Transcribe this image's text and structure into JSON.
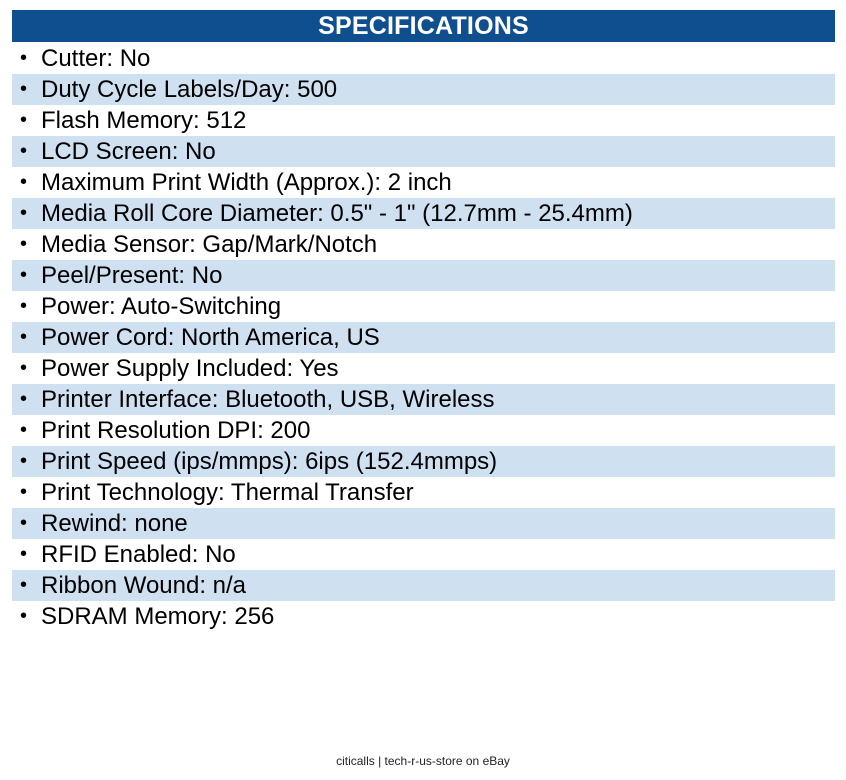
{
  "header": {
    "title": "SPECIFICATIONS"
  },
  "colors": {
    "header_bg": "#0f4f90",
    "header_text": "#ffffff",
    "row_shade": "#cfe0f1"
  },
  "bullet_icon": "•",
  "specs": [
    {
      "label": "Cutter: No"
    },
    {
      "label": "Duty Cycle Labels/Day: 500"
    },
    {
      "label": "Flash Memory: 512"
    },
    {
      "label": "LCD Screen: No"
    },
    {
      "label": "Maximum Print Width (Approx.): 2 inch"
    },
    {
      "label": "Media Roll Core Diameter: 0.5\" - 1\" (12.7mm - 25.4mm)"
    },
    {
      "label": "Media Sensor: Gap/Mark/Notch"
    },
    {
      "label": "Peel/Present: No"
    },
    {
      "label": "Power: Auto-Switching"
    },
    {
      "label": "Power Cord: North America, US"
    },
    {
      "label": "Power Supply Included: Yes"
    },
    {
      "label": "Printer Interface: Bluetooth, USB, Wireless"
    },
    {
      "label": "Print Resolution DPI: 200"
    },
    {
      "label": "Print Speed (ips/mmps): 6ips (152.4mmps)"
    },
    {
      "label": "Print Technology: Thermal Transfer"
    },
    {
      "label": "Rewind: none"
    },
    {
      "label": "RFID Enabled: No"
    },
    {
      "label": "Ribbon Wound: n/a"
    },
    {
      "label": "SDRAM Memory: 256"
    }
  ],
  "footer": {
    "text": "citicalls | tech-r-us-store on eBay"
  }
}
